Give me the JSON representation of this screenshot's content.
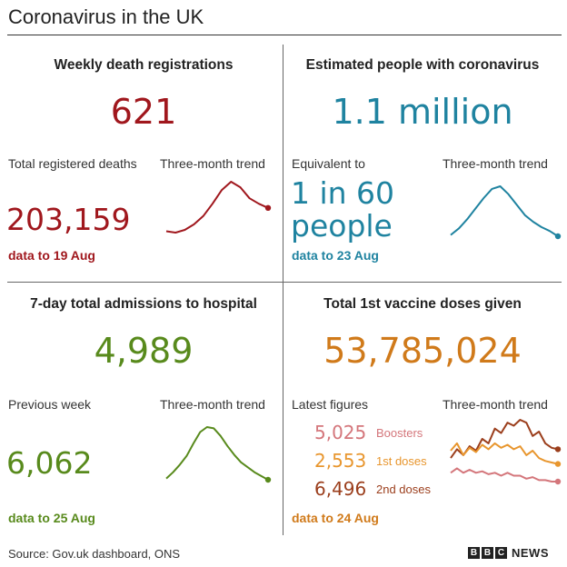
{
  "page_title": "Coronavirus in the UK",
  "source": "Source: Gov.uk dashboard, ONS",
  "logo": {
    "letters": [
      "B",
      "B",
      "C"
    ],
    "word": "NEWS"
  },
  "colors": {
    "maroon": "#a0171d",
    "teal": "#1f83a0",
    "green": "#588a1c",
    "orange": "#d07a1a",
    "boosters": "#d4767b",
    "first": "#e8962e",
    "second": "#9b3e1c"
  },
  "panels": {
    "deaths": {
      "title": "Weekly death registrations",
      "value": "621",
      "left_label": "Total registered deaths",
      "trend_label": "Three-month trend",
      "stat": "203,159",
      "as_of": "data to 19 Aug"
    },
    "infections": {
      "title": "Estimated people with coronavirus",
      "value": "1.1 million",
      "left_label": "Equivalent to",
      "trend_label": "Three-month trend",
      "stat_line1": "1 in 60",
      "stat_line2": "people",
      "as_of": "data to 23 Aug"
    },
    "hospital": {
      "title": "7-day total admissions to hospital",
      "value": "4,989",
      "left_label": "Previous week",
      "trend_label": "Three-month trend",
      "stat": "6,062",
      "as_of": "data to 25 Aug"
    },
    "vaccine": {
      "title": "Total 1st vaccine doses given",
      "value": "53,785,024",
      "left_label": "Latest figures",
      "trend_label": "Three-month trend",
      "as_of": "data to 24 Aug",
      "latest": [
        {
          "value": "5,025",
          "label": "Boosters"
        },
        {
          "value": "2,553",
          "label": "1st doses"
        },
        {
          "value": "6,496",
          "label": "2nd doses"
        }
      ]
    }
  },
  "chart_data": [
    {
      "type": "line",
      "title": "Three-month trend",
      "series": [
        {
          "name": "",
          "values": [
            2,
            1,
            3,
            7,
            13,
            22,
            32,
            38,
            34,
            26,
            22,
            19
          ]
        }
      ]
    },
    {
      "type": "line",
      "title": "Three-month trend",
      "series": [
        {
          "name": "",
          "values": [
            3,
            8,
            15,
            23,
            31,
            38,
            40,
            34,
            26,
            18,
            13,
            9,
            6,
            2
          ]
        }
      ]
    },
    {
      "type": "line",
      "title": "Three-month trend",
      "series": [
        {
          "name": "",
          "values": [
            4,
            9,
            15,
            22,
            32,
            41,
            45,
            44,
            38,
            30,
            23,
            17,
            13,
            9,
            6,
            3
          ]
        }
      ]
    },
    {
      "type": "line",
      "title": "Three-month trend",
      "series": [
        {
          "name": "2nd doses",
          "values": [
            20,
            26,
            22,
            28,
            25,
            33,
            30,
            40,
            37,
            44,
            42,
            46,
            44,
            35,
            38,
            30,
            27,
            26
          ]
        },
        {
          "name": "1st doses",
          "values": [
            25,
            30,
            22,
            27,
            24,
            29,
            26,
            30,
            27,
            29,
            26,
            28,
            22,
            25,
            20,
            18,
            17,
            16
          ]
        },
        {
          "name": "Boosters",
          "values": [
            10,
            13,
            10,
            12,
            10,
            11,
            9,
            10,
            8,
            10,
            8,
            8,
            6,
            7,
            5,
            5,
            4,
            4
          ]
        }
      ]
    }
  ]
}
